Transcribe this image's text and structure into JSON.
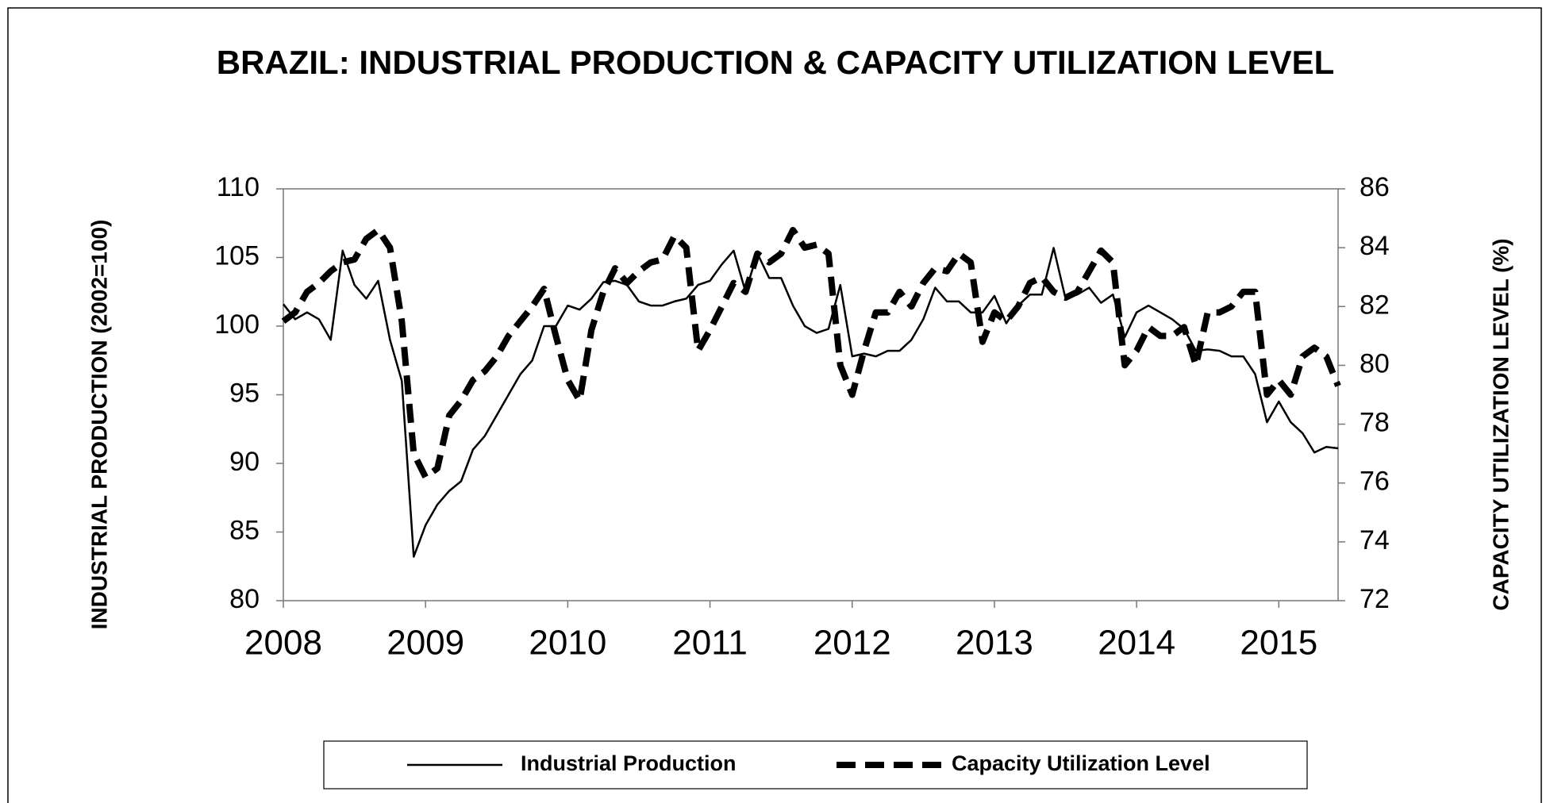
{
  "chart_data": {
    "type": "line",
    "title": "BRAZIL: INDUSTRIAL PRODUCTION & CAPACITY UTILIZATION LEVEL",
    "y_label": "INDUSTRIAL PRODUCTION (2002=100)",
    "y2_label": "CAPACITY UTILIZATION LEVEL (%)",
    "categories": [
      "2008",
      null,
      null,
      null,
      null,
      null,
      null,
      null,
      null,
      null,
      null,
      null,
      "2009",
      null,
      null,
      null,
      null,
      null,
      null,
      null,
      null,
      null,
      null,
      null,
      "2010",
      null,
      null,
      null,
      null,
      null,
      null,
      null,
      null,
      null,
      null,
      null,
      "2011",
      null,
      null,
      null,
      null,
      null,
      null,
      null,
      null,
      null,
      null,
      null,
      "2012",
      null,
      null,
      null,
      null,
      null,
      null,
      null,
      null,
      null,
      null,
      null,
      "2013",
      null,
      null,
      null,
      null,
      null,
      null,
      null,
      null,
      null,
      null,
      null,
      "2014",
      null,
      null,
      null,
      null,
      null,
      null,
      null,
      null,
      null,
      null,
      null,
      "2015",
      null,
      null,
      null,
      null,
      null
    ],
    "series": [
      {
        "name": "Industrial Production",
        "color": "#000000",
        "line_style": "solid",
        "values": [
          101.6,
          100.5,
          101,
          100.5,
          99,
          105.5,
          103,
          102,
          103.3,
          99,
          96,
          83.2,
          85.5,
          87,
          88,
          88.7,
          91,
          92,
          93.5,
          95,
          96.5,
          97.5,
          100,
          100,
          101.5,
          101.2,
          102,
          103.2,
          103.3,
          103,
          101.8,
          101.5,
          101.5,
          101.8,
          102,
          103,
          103.3,
          104.5,
          105.5,
          102.5,
          105.3,
          103.5,
          103.5,
          101.5,
          100,
          99.5,
          99.8,
          103,
          97.8,
          98,
          97.8,
          98.2,
          98.2,
          99,
          100.5,
          102.8,
          101.8,
          101.8,
          101,
          101,
          102.2,
          100.2,
          101.5,
          102.3,
          102.3,
          105.7,
          102,
          102.3,
          102.8,
          101.7,
          102.3,
          99.2,
          101,
          101.5,
          101,
          100.5,
          99.8,
          98.2,
          98.3,
          98.2,
          97.8,
          97.8,
          96.5,
          93,
          94.5,
          93,
          92.2,
          90.8,
          91.2,
          91.1
        ]
      },
      {
        "name": "Capacity Utilization Level",
        "color": "#000000",
        "line_style": "dashed",
        "axis": "y2",
        "values": [
          81.5,
          81.8,
          82.5,
          82.8,
          83.2,
          83.5,
          83.6,
          84.3,
          84.6,
          84,
          81.5,
          77,
          76.2,
          76.5,
          78.3,
          78.8,
          79.5,
          79.8,
          80.3,
          81,
          81.5,
          82,
          82.6,
          81,
          79.5,
          78.8,
          81.2,
          82.5,
          83.3,
          82.8,
          83.2,
          83.5,
          83.6,
          84.4,
          84,
          80.5,
          81.2,
          82,
          82.8,
          82.5,
          83.8,
          83.5,
          83.8,
          84.6,
          84,
          84.1,
          83.8,
          80,
          79,
          80.5,
          81.8,
          81.8,
          82.5,
          82,
          82.8,
          83.3,
          83.2,
          83.8,
          83.5,
          80.8,
          81.8,
          81.5,
          82,
          82.8,
          83,
          82.5,
          82.3,
          82.5,
          83.2,
          83.9,
          83.5,
          80,
          80.5,
          81.3,
          81,
          81,
          81.3,
          80,
          81.8,
          81.8,
          82,
          82.5,
          82.5,
          79,
          79.5,
          79,
          80.3,
          80.6,
          80.3,
          79.3
        ]
      }
    ],
    "ylim": [
      80,
      110
    ],
    "yticks": [
      80,
      85,
      90,
      95,
      100,
      105,
      110
    ],
    "y2lim": [
      72,
      86
    ],
    "y2ticks": [
      72,
      74,
      76,
      78,
      80,
      82,
      84,
      86
    ],
    "grid": false,
    "legend": "bottom"
  }
}
